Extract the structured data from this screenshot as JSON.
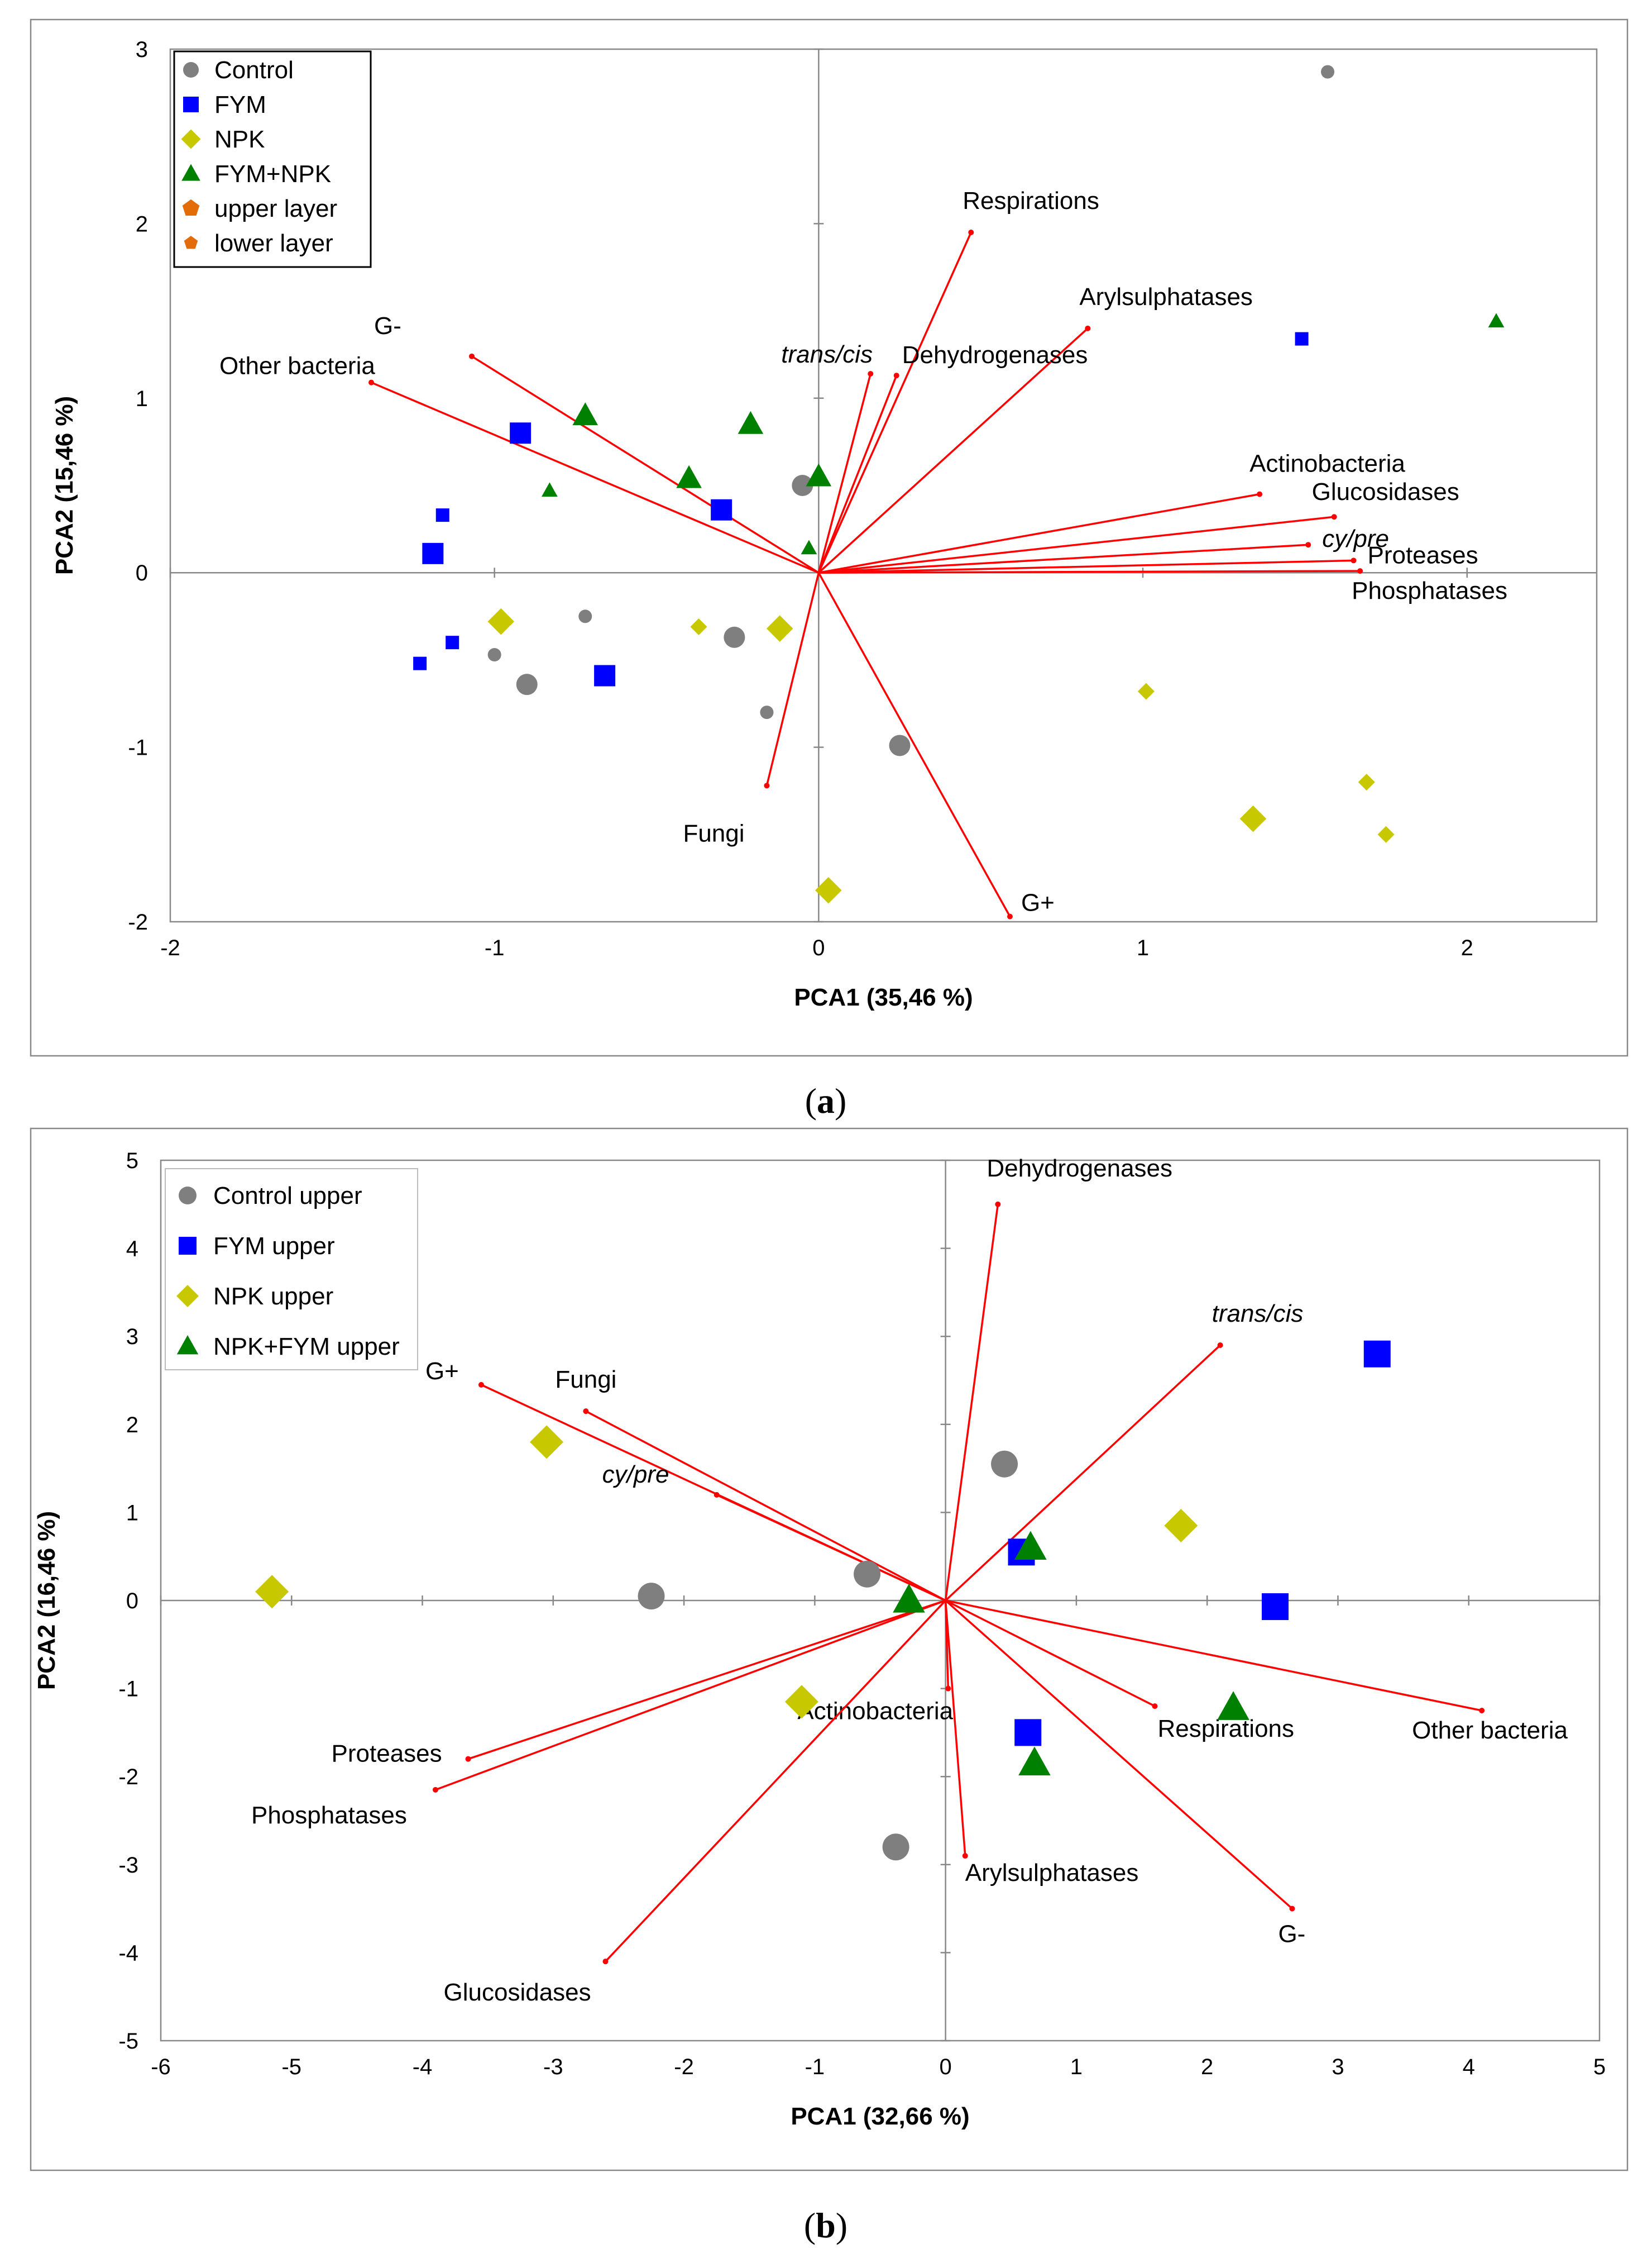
{
  "chart_data": [
    {
      "type": "scatter",
      "panel": "a",
      "caption_label": "a",
      "xlabel": "PCA1 (35,46 %)",
      "ylabel": "PCA2 (15,46 %)",
      "xlim": [
        -2,
        2.4
      ],
      "ylim": [
        -2,
        3
      ],
      "xticks": [
        "-2",
        "-1",
        "0",
        "1",
        "2"
      ],
      "yticks": [
        "-2",
        "-1",
        "0",
        "1",
        "2",
        "3"
      ],
      "legend_position": "top-left",
      "legend": [
        {
          "label": "Control",
          "marker": "circle",
          "color": "#7f7f7f"
        },
        {
          "label": "FYM",
          "marker": "square",
          "color": "#0000ff"
        },
        {
          "label": "NPK",
          "marker": "diamond",
          "color": "#c8c800"
        },
        {
          "label": "FYM+NPK",
          "marker": "triangle",
          "color": "#008000"
        },
        {
          "label": "upper layer",
          "marker": "pentagon",
          "color": "#e36c09",
          "size": "large"
        },
        {
          "label": "lower layer",
          "marker": "pentagon",
          "color": "#e36c09",
          "size": "small"
        }
      ],
      "vectors": [
        {
          "label": "Respirations",
          "x": 0.47,
          "y": 1.95,
          "italic": false
        },
        {
          "label": "Arylsulphatases",
          "x": 0.83,
          "y": 1.4,
          "italic": false
        },
        {
          "label": "trans/cis",
          "x": 0.16,
          "y": 1.14,
          "italic": true
        },
        {
          "label": "Dehydrogenases",
          "x": 0.24,
          "y": 1.13,
          "italic": false
        },
        {
          "label": "G-",
          "x": -1.07,
          "y": 1.24,
          "italic": false
        },
        {
          "label": "Other bacteria",
          "x": -1.38,
          "y": 1.09,
          "italic": false
        },
        {
          "label": "Actinobacteria",
          "x": 1.36,
          "y": 0.45,
          "italic": false
        },
        {
          "label": "Glucosidases",
          "x": 1.59,
          "y": 0.32,
          "italic": false
        },
        {
          "label": "cy/pre",
          "x": 1.51,
          "y": 0.16,
          "italic": true
        },
        {
          "label": "Proteases",
          "x": 1.65,
          "y": 0.07,
          "italic": false
        },
        {
          "label": "Phosphatases",
          "x": 1.67,
          "y": 0.01,
          "italic": false
        },
        {
          "label": "Fungi",
          "x": -0.16,
          "y": -1.22,
          "italic": false
        },
        {
          "label": "G+",
          "x": 0.59,
          "y": -1.97,
          "italic": false
        }
      ],
      "series": [
        {
          "name": "Control",
          "marker": "circle",
          "color": "#7f7f7f",
          "points": [
            {
              "x": 1.57,
              "y": 2.87,
              "size": "small"
            },
            {
              "x": -0.05,
              "y": 0.5,
              "size": "large"
            },
            {
              "x": -0.72,
              "y": -0.25,
              "size": "small"
            },
            {
              "x": -0.26,
              "y": -0.37,
              "size": "large"
            },
            {
              "x": -1.0,
              "y": -0.47,
              "size": "small"
            },
            {
              "x": -0.9,
              "y": -0.64,
              "size": "large"
            },
            {
              "x": -0.16,
              "y": -0.8,
              "size": "small"
            },
            {
              "x": 0.25,
              "y": -0.99,
              "size": "large"
            }
          ]
        },
        {
          "name": "FYM",
          "marker": "square",
          "color": "#0000ff",
          "points": [
            {
              "x": 1.49,
              "y": 1.34,
              "size": "small"
            },
            {
              "x": -0.92,
              "y": 0.8,
              "size": "large"
            },
            {
              "x": -0.3,
              "y": 0.36,
              "size": "large"
            },
            {
              "x": -1.16,
              "y": 0.33,
              "size": "small"
            },
            {
              "x": -1.19,
              "y": 0.11,
              "size": "large"
            },
            {
              "x": -1.13,
              "y": -0.4,
              "size": "small"
            },
            {
              "x": -1.23,
              "y": -0.52,
              "size": "small"
            },
            {
              "x": -0.66,
              "y": -0.59,
              "size": "large"
            }
          ]
        },
        {
          "name": "NPK",
          "marker": "diamond",
          "color": "#c8c800",
          "points": [
            {
              "x": -0.98,
              "y": -0.28,
              "size": "large"
            },
            {
              "x": -0.37,
              "y": -0.31,
              "size": "small"
            },
            {
              "x": -0.12,
              "y": -0.32,
              "size": "large"
            },
            {
              "x": 1.01,
              "y": -0.68,
              "size": "small"
            },
            {
              "x": 1.34,
              "y": -1.41,
              "size": "large"
            },
            {
              "x": 1.69,
              "y": -1.2,
              "size": "small"
            },
            {
              "x": 1.75,
              "y": -1.5,
              "size": "small"
            },
            {
              "x": 0.03,
              "y": -1.82,
              "size": "large"
            }
          ]
        },
        {
          "name": "FYM+NPK",
          "marker": "triangle",
          "color": "#008000",
          "points": [
            {
              "x": 2.09,
              "y": 1.44,
              "size": "small"
            },
            {
              "x": -0.72,
              "y": 0.9,
              "size": "large"
            },
            {
              "x": -0.21,
              "y": 0.85,
              "size": "large"
            },
            {
              "x": -0.4,
              "y": 0.54,
              "size": "large"
            },
            {
              "x": 0.0,
              "y": 0.55,
              "size": "large"
            },
            {
              "x": -0.83,
              "y": 0.47,
              "size": "small"
            },
            {
              "x": -0.03,
              "y": 0.14,
              "size": "small"
            }
          ]
        }
      ]
    },
    {
      "type": "scatter",
      "panel": "b",
      "caption_label": "b",
      "xlabel": "PCA1 (32,66 %)",
      "ylabel": "PCA2 (16,46 %)",
      "xlim": [
        -6,
        5
      ],
      "ylim": [
        -5,
        5
      ],
      "xticks": [
        "-6",
        "-5",
        "-4",
        "-3",
        "-2",
        "-1",
        "0",
        "1",
        "2",
        "3",
        "4",
        "5"
      ],
      "yticks": [
        "-5",
        "-4",
        "-3",
        "-2",
        "-1",
        "0",
        "1",
        "2",
        "3",
        "4",
        "5"
      ],
      "legend_position": "top-left",
      "legend": [
        {
          "label": "Control upper",
          "marker": "circle",
          "color": "#7f7f7f"
        },
        {
          "label": "FYM upper",
          "marker": "square",
          "color": "#0000ff"
        },
        {
          "label": "NPK upper",
          "marker": "diamond",
          "color": "#c8c800"
        },
        {
          "label": "NPK+FYM upper",
          "marker": "triangle",
          "color": "#008000"
        }
      ],
      "vectors": [
        {
          "label": "Dehydrogenases",
          "x": 0.4,
          "y": 4.5,
          "italic": false
        },
        {
          "label": "trans/cis",
          "x": 2.1,
          "y": 2.9,
          "italic": true
        },
        {
          "label": "G+",
          "x": -3.55,
          "y": 2.45,
          "italic": false
        },
        {
          "label": "Fungi",
          "x": -2.75,
          "y": 2.15,
          "italic": false
        },
        {
          "label": "cy/pre",
          "x": -1.75,
          "y": 1.2,
          "italic": true
        },
        {
          "label": "Other bacteria",
          "x": 4.1,
          "y": -1.25,
          "italic": false
        },
        {
          "label": "Respirations",
          "x": 1.6,
          "y": -1.2,
          "italic": false
        },
        {
          "label": "Actinobacteria",
          "x": 0.02,
          "y": -1.0,
          "italic": false
        },
        {
          "label": "Proteases",
          "x": -3.65,
          "y": -1.8,
          "italic": false
        },
        {
          "label": "Phosphatases",
          "x": -3.9,
          "y": -2.15,
          "italic": false
        },
        {
          "label": "Arylsulphatases",
          "x": 0.15,
          "y": -2.9,
          "italic": false
        },
        {
          "label": "G-",
          "x": 2.65,
          "y": -3.5,
          "italic": false
        },
        {
          "label": "Glucosidases",
          "x": -2.6,
          "y": -4.1,
          "italic": false
        }
      ],
      "series": [
        {
          "name": "Control upper",
          "marker": "circle",
          "color": "#7f7f7f",
          "points": [
            {
              "x": 0.45,
              "y": 1.55
            },
            {
              "x": -0.6,
              "y": 0.3
            },
            {
              "x": -2.25,
              "y": 0.05
            },
            {
              "x": -0.38,
              "y": -2.8
            }
          ]
        },
        {
          "name": "FYM upper",
          "marker": "square",
          "color": "#0000ff",
          "points": [
            {
              "x": 3.3,
              "y": 2.8
            },
            {
              "x": 0.58,
              "y": 0.55
            },
            {
              "x": 2.52,
              "y": -0.07
            },
            {
              "x": 0.63,
              "y": -1.5
            }
          ]
        },
        {
          "name": "NPK upper",
          "marker": "diamond",
          "color": "#c8c800",
          "points": [
            {
              "x": -3.05,
              "y": 1.8
            },
            {
              "x": 1.8,
              "y": 0.85
            },
            {
              "x": -5.15,
              "y": 0.1
            },
            {
              "x": -1.1,
              "y": -1.15
            }
          ]
        },
        {
          "name": "NPK+FYM upper",
          "marker": "triangle",
          "color": "#008000",
          "points": [
            {
              "x": 0.65,
              "y": 0.6
            },
            {
              "x": -0.28,
              "y": 0.0
            },
            {
              "x": 2.2,
              "y": -1.22
            },
            {
              "x": 0.68,
              "y": -1.85
            }
          ]
        }
      ]
    }
  ]
}
